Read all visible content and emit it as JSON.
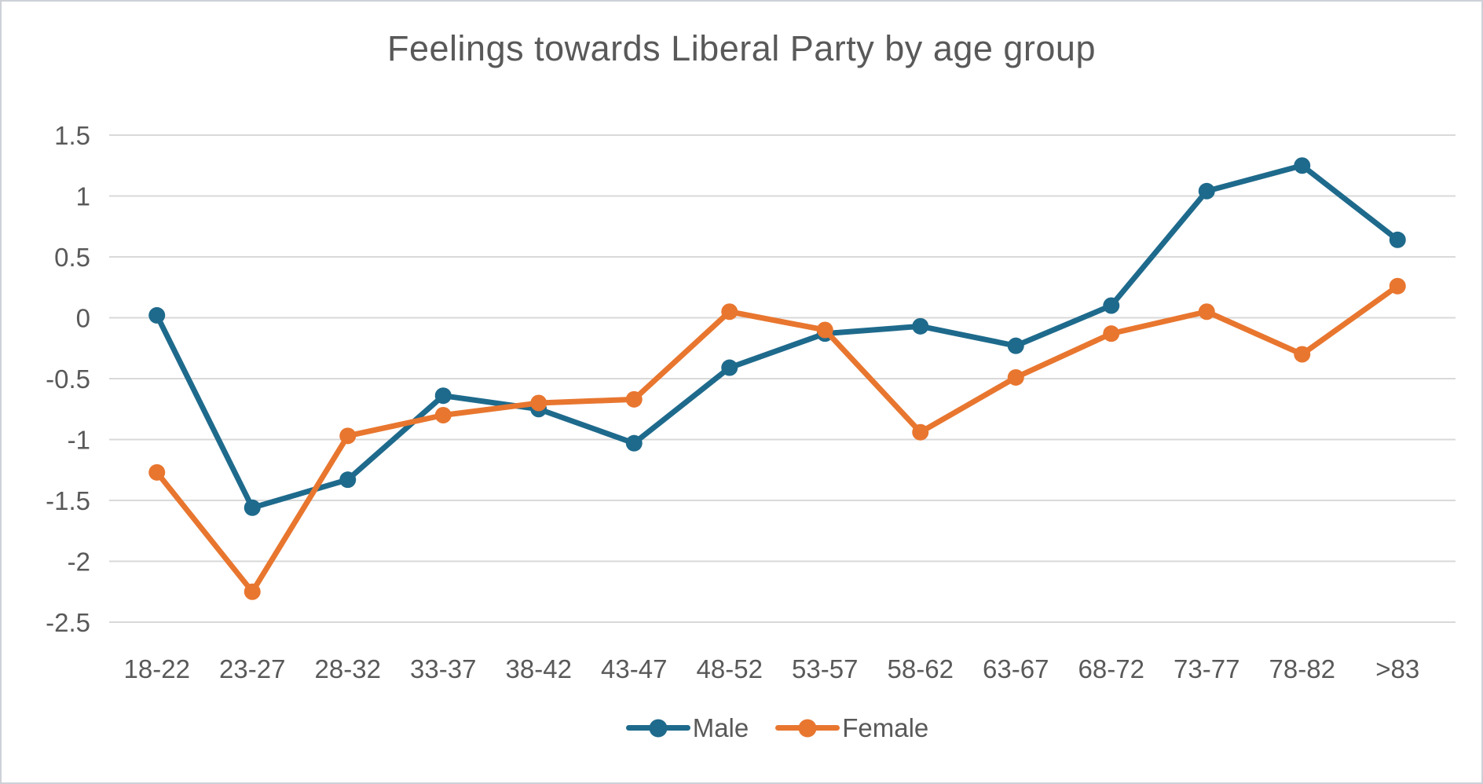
{
  "title": "Feelings towards Liberal Party by age group",
  "chart_data": {
    "type": "line",
    "categories": [
      "18-22",
      "23-27",
      "28-32",
      "33-37",
      "38-42",
      "43-47",
      "48-52",
      "53-57",
      "58-62",
      "63-67",
      "68-72",
      "73-77",
      "78-82",
      ">83"
    ],
    "series": [
      {
        "name": "Male",
        "color": "#1E6A8C",
        "values": [
          0.02,
          -1.56,
          -1.33,
          -0.64,
          -0.75,
          -1.03,
          -0.41,
          -0.13,
          -0.07,
          -0.23,
          0.1,
          1.04,
          1.25,
          0.64
        ]
      },
      {
        "name": "Female",
        "color": "#E8762F",
        "values": [
          -1.27,
          -2.25,
          -0.97,
          -0.8,
          -0.7,
          -0.67,
          0.05,
          -0.1,
          -0.94,
          -0.49,
          -0.13,
          0.05,
          -0.3,
          0.26
        ]
      }
    ],
    "ylim": [
      -2.5,
      1.5
    ],
    "ytick_step": 0.5,
    "ytick_labels": [
      "1.5",
      "1",
      "0.5",
      "0",
      "-0.5",
      "-1",
      "-1.5",
      "-2",
      "-2.5"
    ],
    "xlabel": "",
    "ylabel": "",
    "grid": true,
    "legend_position": "bottom",
    "grid_color": "#D9D9D9",
    "text_color": "#595959",
    "background_color": "#FFFFFF",
    "border_color": "#CDD1D7"
  }
}
